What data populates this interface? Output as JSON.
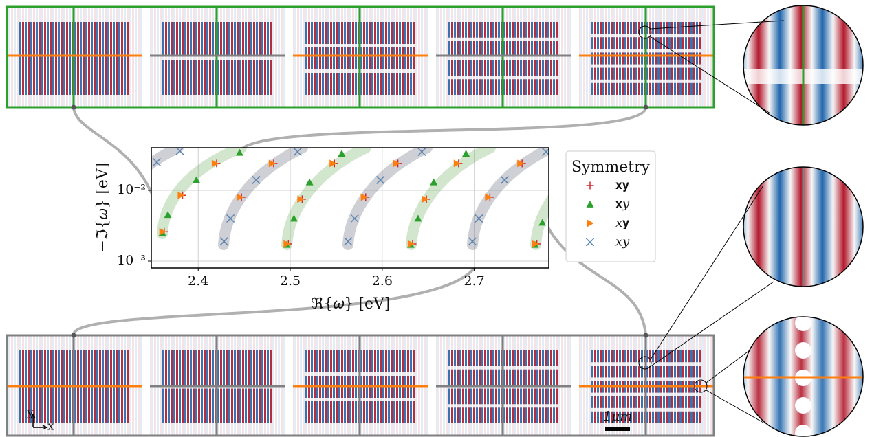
{
  "chart_data": {
    "type": "scatter",
    "xlabel": "ℜ{𝜔} [eV]",
    "ylabel": "−ℑ{𝜔} [eV]",
    "legend_title": "Symmetry",
    "legend": "right",
    "xlim": [
      2.349,
      2.781
    ],
    "ylim": [
      0.0008,
      0.04
    ],
    "ylog": true,
    "grid": true,
    "xticks": [
      2.4,
      2.5,
      2.6,
      2.7
    ],
    "yticks": [
      {
        "value": 0.001,
        "label": "10⁻³"
      },
      {
        "value": 0.01,
        "label": "10⁻²"
      }
    ],
    "series": [
      {
        "name": "𝐱𝐲",
        "color": "#d62728",
        "marker": "plus",
        "x": [
          2.363,
          2.383,
          2.42,
          2.447,
          2.482,
          2.498,
          2.513,
          2.548,
          2.582,
          2.617,
          2.633,
          2.648,
          2.683,
          2.717,
          2.752,
          2.768
        ],
        "values": [
          0.0026,
          0.0085,
          0.024,
          0.008,
          0.024,
          0.00175,
          0.0075,
          0.024,
          0.008,
          0.024,
          0.00175,
          0.0075,
          0.024,
          0.008,
          0.024,
          0.00175
        ]
      },
      {
        "name": "𝐱𝑦",
        "color": "#2ca02c",
        "marker": "triangle-up",
        "x": [
          2.361,
          2.367,
          2.398,
          2.445,
          2.496,
          2.504,
          2.521,
          2.556,
          2.631,
          2.639,
          2.656,
          2.691,
          2.766,
          2.774
        ],
        "values": [
          0.0025,
          0.0045,
          0.014,
          0.034,
          0.0017,
          0.004,
          0.013,
          0.033,
          0.0017,
          0.004,
          0.013,
          0.033,
          0.0017,
          0.0035
        ]
      },
      {
        "name": "𝑥𝐲",
        "color": "#ff7f0e",
        "marker": "triangle-right",
        "x": [
          2.361,
          2.381,
          2.418,
          2.445,
          2.48,
          2.496,
          2.511,
          2.546,
          2.58,
          2.615,
          2.631,
          2.646,
          2.681,
          2.715,
          2.75,
          2.766
        ],
        "values": [
          0.0026,
          0.0085,
          0.024,
          0.008,
          0.024,
          0.00175,
          0.0075,
          0.024,
          0.008,
          0.024,
          0.00175,
          0.0075,
          0.024,
          0.008,
          0.024,
          0.00175
        ]
      },
      {
        "name": "𝑥𝑦",
        "color": "#5b84b1",
        "marker": "cross",
        "x": [
          2.355,
          2.38,
          2.428,
          2.435,
          2.463,
          2.508,
          2.563,
          2.57,
          2.598,
          2.643,
          2.698,
          2.705,
          2.733,
          2.778
        ],
        "values": [
          0.025,
          0.036,
          0.0019,
          0.004,
          0.014,
          0.035,
          0.0019,
          0.004,
          0.014,
          0.035,
          0.0019,
          0.004,
          0.014,
          0.035
        ]
      }
    ],
    "annotations": [
      "y",
      "x",
      "1𝜇𝑚"
    ]
  }
}
